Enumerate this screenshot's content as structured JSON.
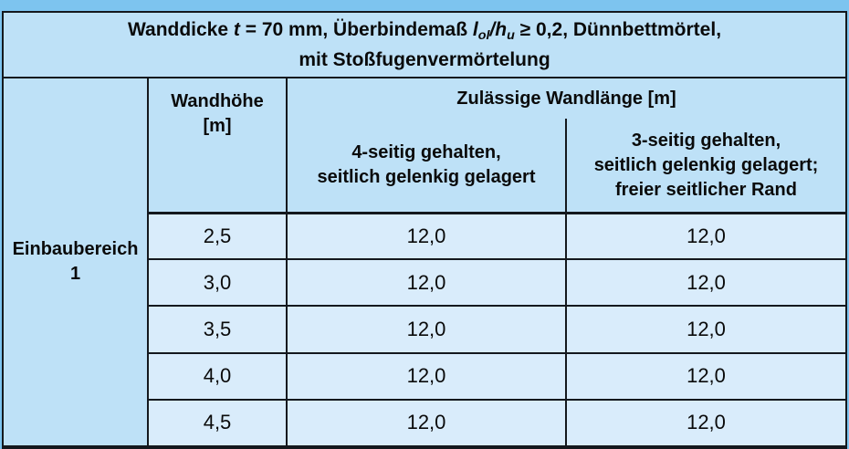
{
  "title": {
    "text_before_t": "Wanddicke ",
    "var_t": "t",
    "text_mid": " = 70 mm, Überbindemaß ",
    "var_l": "l",
    "sub_l": "ol",
    "slash": "/",
    "var_h": "h",
    "sub_h": "u",
    "text_after": " ≥ 0,2, Dünnbettmörtel,",
    "line2": "mit Stoßfugenvermörtelung"
  },
  "row_header": {
    "line1": "Einbaubereich",
    "line2": "1"
  },
  "columns": {
    "wandhoehe": [
      "Wandhöhe",
      "[m]"
    ],
    "wandlaenge": "Zulässige Wandlänge [m]",
    "sub_4seitig": [
      "4-seitig gehalten,",
      "seitlich gelenkig gelagert"
    ],
    "sub_3seitig": [
      "3-seitig gehalten,",
      "seitlich gelenkig gelagert;",
      "freier seitlicher Rand"
    ]
  },
  "rows": [
    {
      "wandhoehe": "2,5",
      "laenge_4seitig": "12,0",
      "laenge_3seitig": "12,0"
    },
    {
      "wandhoehe": "3,0",
      "laenge_4seitig": "12,0",
      "laenge_3seitig": "12,0"
    },
    {
      "wandhoehe": "3,5",
      "laenge_4seitig": "12,0",
      "laenge_3seitig": "12,0"
    },
    {
      "wandhoehe": "4,0",
      "laenge_4seitig": "12,0",
      "laenge_3seitig": "12,0"
    },
    {
      "wandhoehe": "4,5",
      "laenge_4seitig": "12,0",
      "laenge_3seitig": "12,0"
    }
  ],
  "colors": {
    "page_background": "#7dc4ef",
    "header_cell": "#bee1f7",
    "data_cell": "#d9ecfb",
    "border": "#14181d"
  }
}
